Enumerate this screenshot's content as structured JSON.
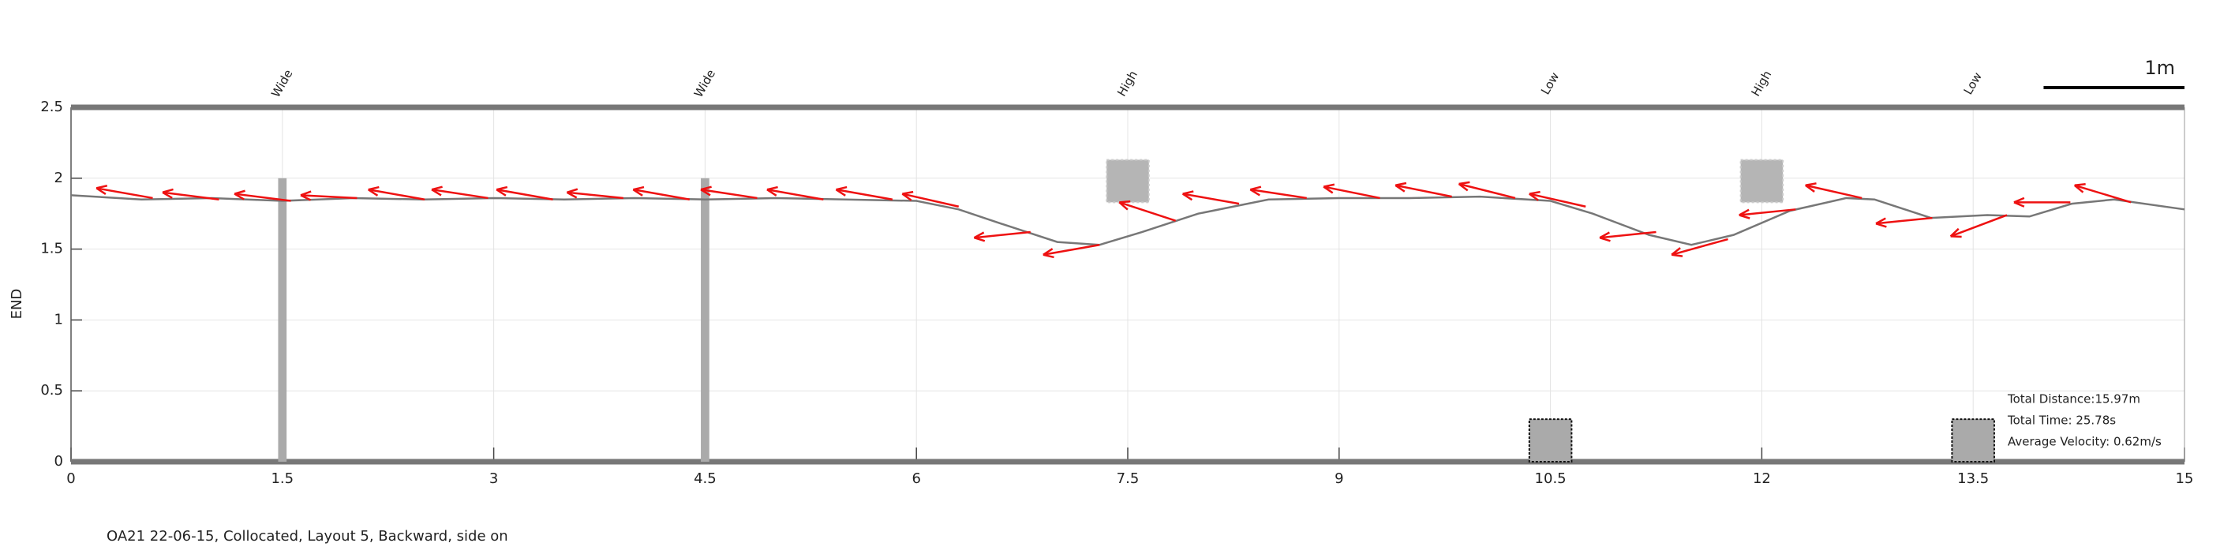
{
  "chart_data": {
    "type": "line",
    "ylabel": "END",
    "caption": "OA21 22-06-15, Collocated, Layout 5, Backward, side on",
    "xlim": [
      0,
      15
    ],
    "ylim": [
      0,
      2.5
    ],
    "xticks": [
      0,
      1.5,
      3,
      4.5,
      6,
      7.5,
      9,
      10.5,
      12,
      13.5,
      15
    ],
    "yticks": [
      0,
      0.5,
      1,
      1.5,
      2,
      2.5
    ],
    "grid": true,
    "scale_bar": {
      "label": "1m",
      "length": 1
    },
    "stats": [
      "Total Distance:15.97m",
      "Total Time: 25.78s",
      "Average Velocity: 0.62m/s"
    ],
    "obstacles": [
      {
        "label": "Wide",
        "x": 1.5
      },
      {
        "label": "Wide",
        "x": 4.5
      },
      {
        "label": "High",
        "x": 7.5
      },
      {
        "label": "Low",
        "x": 10.5
      },
      {
        "label": "High",
        "x": 12
      },
      {
        "label": "Low",
        "x": 13.5
      }
    ],
    "series": [
      {
        "color": "#777777",
        "x": [
          0,
          0.5,
          1,
          1.5,
          2,
          2.5,
          3,
          3.5,
          4,
          4.5,
          5,
          5.5,
          6,
          6.3,
          6.6,
          7,
          7.3,
          7.6,
          8,
          8.5,
          9,
          9.5,
          10,
          10.5,
          10.8,
          11.2,
          11.5,
          11.8,
          12.2,
          12.6,
          12.8,
          13.2,
          13.6,
          13.9,
          14.2,
          14.5,
          15
        ],
        "values": [
          1.88,
          1.85,
          1.86,
          1.84,
          1.86,
          1.85,
          1.86,
          1.85,
          1.86,
          1.85,
          1.86,
          1.85,
          1.84,
          1.78,
          1.68,
          1.55,
          1.53,
          1.62,
          1.75,
          1.85,
          1.86,
          1.86,
          1.87,
          1.84,
          1.75,
          1.6,
          1.53,
          1.6,
          1.77,
          1.86,
          1.85,
          1.72,
          1.74,
          1.73,
          1.82,
          1.85,
          1.78
        ]
      }
    ],
    "arrow_color": "#ee1111",
    "arrows": [
      [
        0.58,
        1.86,
        0.18,
        1.93
      ],
      [
        1.05,
        1.85,
        0.65,
        1.9
      ],
      [
        1.56,
        1.84,
        1.16,
        1.89
      ],
      [
        2.03,
        1.86,
        1.63,
        1.88
      ],
      [
        2.51,
        1.85,
        2.11,
        1.92
      ],
      [
        2.96,
        1.86,
        2.56,
        1.92
      ],
      [
        3.42,
        1.85,
        3.02,
        1.92
      ],
      [
        3.92,
        1.86,
        3.52,
        1.9
      ],
      [
        4.39,
        1.85,
        3.99,
        1.92
      ],
      [
        4.87,
        1.86,
        4.47,
        1.92
      ],
      [
        5.34,
        1.85,
        4.94,
        1.92
      ],
      [
        5.83,
        1.85,
        5.43,
        1.92
      ],
      [
        6.3,
        1.8,
        5.9,
        1.89
      ],
      [
        6.81,
        1.62,
        6.41,
        1.58
      ],
      [
        7.3,
        1.53,
        6.9,
        1.46
      ],
      [
        7.84,
        1.7,
        7.44,
        1.83
      ],
      [
        8.29,
        1.82,
        7.89,
        1.89
      ],
      [
        8.77,
        1.86,
        8.37,
        1.92
      ],
      [
        9.29,
        1.86,
        8.89,
        1.94
      ],
      [
        9.8,
        1.87,
        9.4,
        1.95
      ],
      [
        10.25,
        1.86,
        9.85,
        1.96
      ],
      [
        10.75,
        1.8,
        10.35,
        1.89
      ],
      [
        11.25,
        1.62,
        10.85,
        1.58
      ],
      [
        11.76,
        1.57,
        11.36,
        1.46
      ],
      [
        12.24,
        1.78,
        11.84,
        1.74
      ],
      [
        12.71,
        1.86,
        12.31,
        1.95
      ],
      [
        13.21,
        1.72,
        12.81,
        1.68
      ],
      [
        13.74,
        1.74,
        13.34,
        1.59
      ],
      [
        14.19,
        1.83,
        13.79,
        1.83
      ],
      [
        14.62,
        1.83,
        14.22,
        1.95
      ]
    ]
  }
}
